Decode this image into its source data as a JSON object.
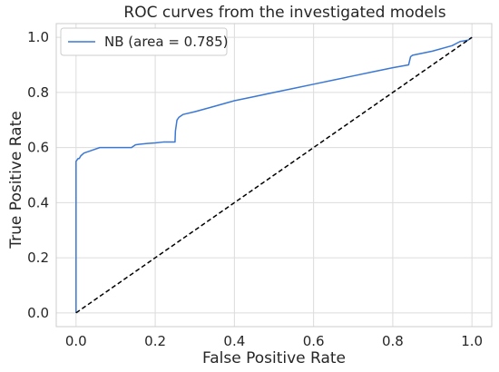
{
  "chart_data": {
    "type": "line",
    "title": "ROC curves from the investigated models",
    "xlabel": "False Positive Rate",
    "ylabel": "True Positive Rate",
    "xlim": [
      -0.05,
      1.05
    ],
    "ylim": [
      -0.05,
      1.05
    ],
    "xticks": [
      0.0,
      0.2,
      0.4,
      0.6,
      0.8,
      1.0
    ],
    "yticks": [
      0.0,
      0.2,
      0.4,
      0.6,
      0.8,
      1.0
    ],
    "xtick_labels": [
      "0.0",
      "0.2",
      "0.4",
      "0.6",
      "0.8",
      "1.0"
    ],
    "ytick_labels": [
      "0.0",
      "0.2",
      "0.4",
      "0.6",
      "0.8",
      "1.0"
    ],
    "grid": true,
    "legend_position": "upper-left",
    "series": [
      {
        "name": "NB (area = 0.785)",
        "color": "#3a78d4",
        "style": "solid",
        "x": [
          0.0,
          0.0,
          0.005,
          0.008,
          0.012,
          0.02,
          0.04,
          0.06,
          0.1,
          0.14,
          0.15,
          0.16,
          0.18,
          0.2,
          0.22,
          0.25,
          0.251,
          0.255,
          0.26,
          0.27,
          0.3,
          0.35,
          0.4,
          0.45,
          0.5,
          0.55,
          0.6,
          0.65,
          0.7,
          0.75,
          0.8,
          0.84,
          0.845,
          0.85,
          0.9,
          0.95,
          0.97,
          0.99,
          1.0
        ],
        "y": [
          0.0,
          0.55,
          0.56,
          0.56,
          0.57,
          0.58,
          0.59,
          0.6,
          0.6,
          0.6,
          0.61,
          0.612,
          0.615,
          0.617,
          0.62,
          0.62,
          0.66,
          0.7,
          0.71,
          0.72,
          0.73,
          0.75,
          0.77,
          0.785,
          0.8,
          0.815,
          0.83,
          0.845,
          0.86,
          0.875,
          0.89,
          0.9,
          0.93,
          0.935,
          0.95,
          0.97,
          0.985,
          0.99,
          1.0
        ]
      },
      {
        "name": "",
        "color": "#000000",
        "style": "dashed",
        "x": [
          0.0,
          1.0
        ],
        "y": [
          0.0,
          1.0
        ]
      }
    ]
  }
}
